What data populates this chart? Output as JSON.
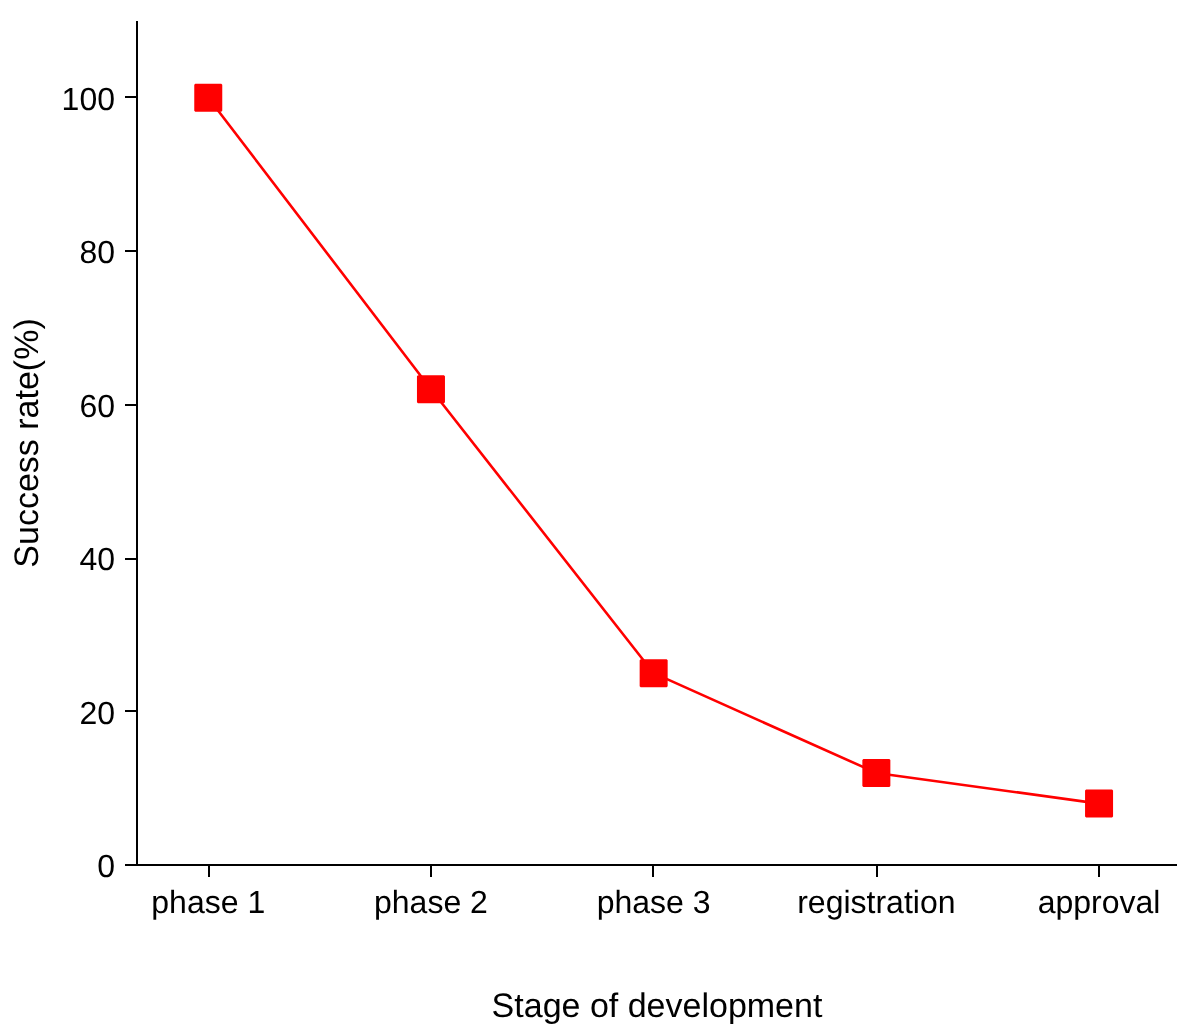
{
  "chart_data": {
    "type": "line",
    "xlabel": "Stage of development",
    "ylabel": "Success rate(%)",
    "categories": [
      "phase 1",
      "phase 2",
      "phase 3",
      "registration",
      "approval"
    ],
    "series": [
      {
        "color": "#ff0000",
        "values": [
          100,
          62,
          25,
          12,
          8
        ]
      }
    ],
    "ylim": [
      0,
      110
    ],
    "yticks": [
      0,
      20,
      40,
      60,
      80,
      100
    ],
    "marker": "square",
    "line_style": "solid",
    "grid": false
  }
}
